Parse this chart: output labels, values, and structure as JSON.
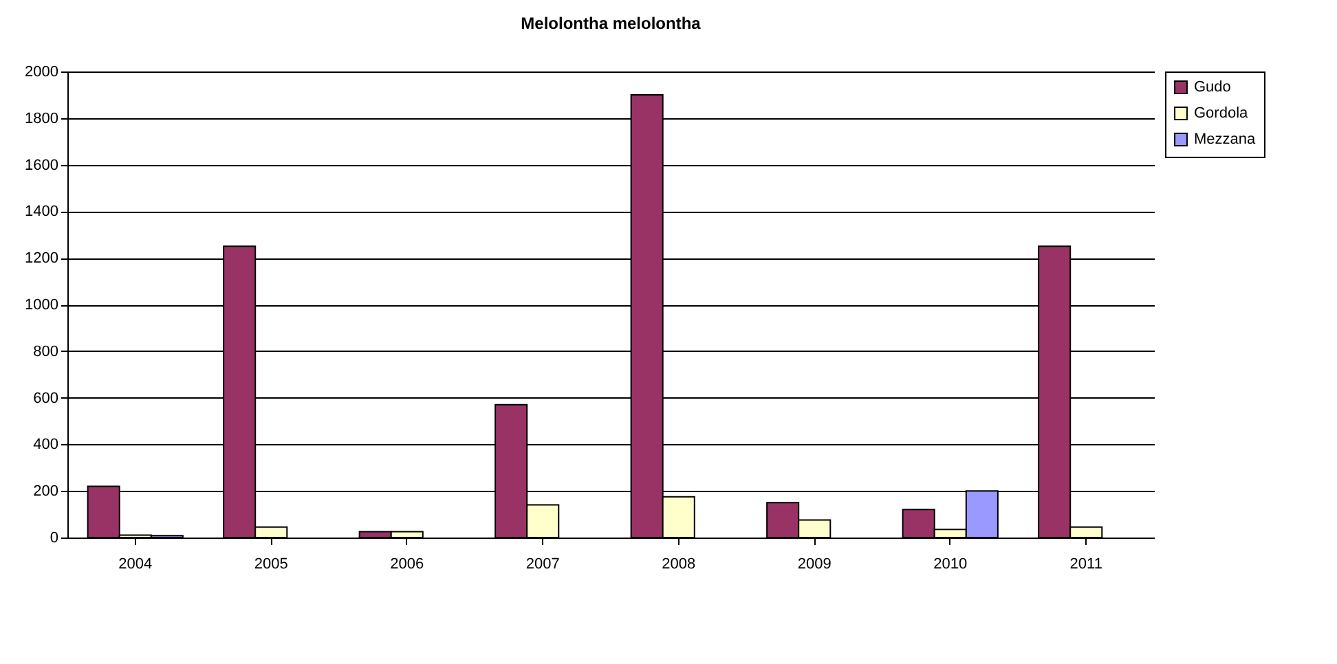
{
  "chart_data": {
    "type": "bar",
    "title": "Melolontha melolontha",
    "categories": [
      "2004",
      "2005",
      "2006",
      "2007",
      "2008",
      "2009",
      "2010",
      "2011"
    ],
    "series": [
      {
        "name": "Gudo",
        "color": "#993366",
        "values": [
          220,
          1250,
          25,
          570,
          1900,
          150,
          120,
          1250
        ]
      },
      {
        "name": "Gordola",
        "color": "#ffffcc",
        "values": [
          10,
          45,
          25,
          140,
          175,
          75,
          35,
          45
        ]
      },
      {
        "name": "Mezzana",
        "color": "#9999ff",
        "values": [
          8,
          null,
          null,
          null,
          null,
          null,
          200,
          null
        ]
      }
    ],
    "ylim": [
      0,
      2000
    ],
    "yticks": [
      0,
      200,
      400,
      600,
      800,
      1000,
      1200,
      1400,
      1600,
      1800,
      2000
    ],
    "grid": "y",
    "legend": "right"
  }
}
